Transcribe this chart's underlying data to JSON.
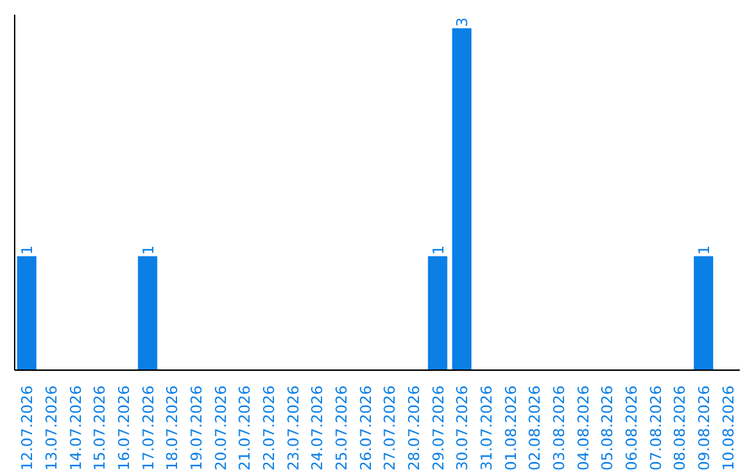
{
  "chart_data": {
    "type": "bar",
    "categories": [
      "12.07.2026",
      "13.07.2026",
      "14.07.2026",
      "15.07.2026",
      "16.07.2026",
      "17.07.2026",
      "18.07.2026",
      "19.07.2026",
      "20.07.2026",
      "21.07.2026",
      "22.07.2026",
      "23.07.2026",
      "24.07.2026",
      "25.07.2026",
      "26.07.2026",
      "27.07.2026",
      "28.07.2026",
      "29.07.2026",
      "30.07.2026",
      "31.07.2026",
      "01.08.2026",
      "02.08.2026",
      "03.08.2026",
      "04.08.2026",
      "05.08.2026",
      "06.08.2026",
      "07.08.2026",
      "08.08.2026",
      "09.08.2026",
      "10.08.2026"
    ],
    "values": [
      1,
      0,
      0,
      0,
      0,
      1,
      0,
      0,
      0,
      0,
      0,
      0,
      0,
      0,
      0,
      0,
      0,
      1,
      3,
      0,
      0,
      0,
      0,
      0,
      0,
      0,
      0,
      0,
      1,
      0
    ],
    "value_labels": [
      "1",
      null,
      null,
      null,
      null,
      "1",
      null,
      null,
      null,
      null,
      null,
      null,
      null,
      null,
      null,
      null,
      null,
      "1",
      "3",
      null,
      null,
      null,
      null,
      null,
      null,
      null,
      null,
      null,
      "1",
      null
    ],
    "color": "#0a7fe6",
    "grid": false
  }
}
